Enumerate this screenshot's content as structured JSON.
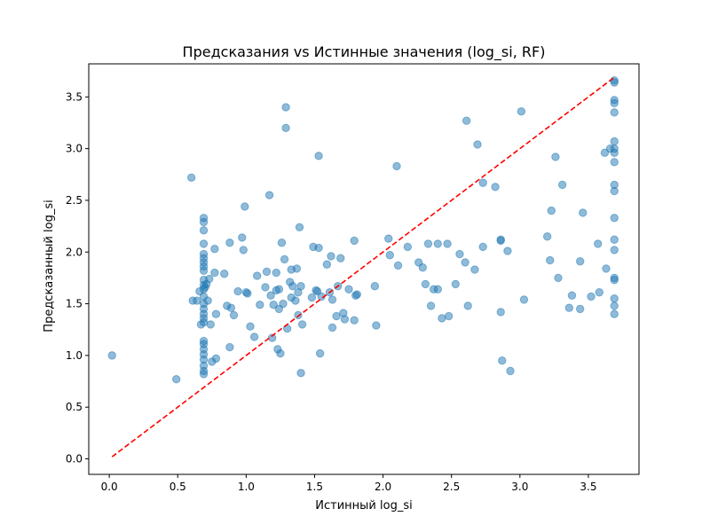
{
  "chart_data": {
    "type": "scatter",
    "title": "Предсказания vs Истинные значения (log_si, RF)",
    "xlabel": "Истинный log_si",
    "ylabel": "Предсказанный log_si",
    "xlim": [
      -0.15,
      3.87
    ],
    "ylim": [
      -0.15,
      3.82
    ],
    "xticks": [
      0.0,
      0.5,
      1.0,
      1.5,
      2.0,
      2.5,
      3.0,
      3.5
    ],
    "xtick_labels": [
      "0.0",
      "0.5",
      "1.0",
      "1.5",
      "2.0",
      "2.5",
      "3.0",
      "3.5"
    ],
    "yticks": [
      0.0,
      0.5,
      1.0,
      1.5,
      2.0,
      2.5,
      3.0,
      3.5
    ],
    "ytick_labels": [
      "0.0",
      "0.5",
      "1.0",
      "1.5",
      "2.0",
      "2.5",
      "3.0",
      "3.5"
    ],
    "grid": false,
    "point_color": "#1f77b4",
    "point_alpha": 0.5,
    "reference_line": {
      "from": [
        0.02,
        0.02
      ],
      "to": [
        3.69,
        3.69
      ],
      "color": "#ff0000",
      "style": "dashed"
    },
    "points": [
      [
        0.02,
        1.0
      ],
      [
        0.49,
        0.77
      ],
      [
        0.6,
        2.72
      ],
      [
        0.61,
        1.53
      ],
      [
        0.64,
        1.53
      ],
      [
        0.66,
        1.62
      ],
      [
        0.67,
        1.3
      ],
      [
        0.69,
        2.33
      ],
      [
        0.69,
        2.29
      ],
      [
        0.69,
        2.21
      ],
      [
        0.69,
        2.08
      ],
      [
        0.69,
        1.98
      ],
      [
        0.69,
        1.94
      ],
      [
        0.69,
        1.9
      ],
      [
        0.69,
        1.86
      ],
      [
        0.69,
        1.82
      ],
      [
        0.69,
        1.73
      ],
      [
        0.69,
        1.68
      ],
      [
        0.69,
        1.64
      ],
      [
        0.69,
        1.57
      ],
      [
        0.69,
        1.5
      ],
      [
        0.69,
        1.45
      ],
      [
        0.69,
        1.4
      ],
      [
        0.69,
        1.36
      ],
      [
        0.69,
        1.32
      ],
      [
        0.69,
        1.14
      ],
      [
        0.69,
        1.11
      ],
      [
        0.69,
        1.06
      ],
      [
        0.69,
        1.01
      ],
      [
        0.69,
        0.96
      ],
      [
        0.69,
        0.9
      ],
      [
        0.69,
        0.85
      ],
      [
        0.69,
        0.82
      ],
      [
        0.7,
        1.66
      ],
      [
        0.71,
        1.69
      ],
      [
        0.72,
        1.53
      ],
      [
        0.73,
        1.74
      ],
      [
        0.74,
        1.3
      ],
      [
        0.75,
        0.94
      ],
      [
        0.77,
        2.03
      ],
      [
        0.77,
        1.8
      ],
      [
        0.78,
        0.97
      ],
      [
        0.78,
        1.4
      ],
      [
        0.84,
        1.79
      ],
      [
        0.86,
        1.48
      ],
      [
        0.88,
        2.09
      ],
      [
        0.88,
        1.08
      ],
      [
        0.89,
        1.46
      ],
      [
        0.91,
        1.39
      ],
      [
        0.94,
        1.62
      ],
      [
        0.97,
        2.14
      ],
      [
        0.98,
        2.02
      ],
      [
        0.99,
        2.44
      ],
      [
        1.0,
        1.61
      ],
      [
        1.01,
        1.6
      ],
      [
        1.03,
        1.28
      ],
      [
        1.06,
        1.18
      ],
      [
        1.08,
        1.77
      ],
      [
        1.1,
        1.49
      ],
      [
        1.14,
        1.66
      ],
      [
        1.15,
        1.81
      ],
      [
        1.17,
        2.55
      ],
      [
        1.18,
        1.58
      ],
      [
        1.19,
        1.17
      ],
      [
        1.2,
        1.49
      ],
      [
        1.22,
        1.63
      ],
      [
        1.22,
        1.8
      ],
      [
        1.23,
        1.06
      ],
      [
        1.24,
        1.45
      ],
      [
        1.24,
        1.64
      ],
      [
        1.25,
        1.02
      ],
      [
        1.26,
        2.09
      ],
      [
        1.27,
        1.5
      ],
      [
        1.28,
        1.93
      ],
      [
        1.29,
        3.4
      ],
      [
        1.29,
        3.2
      ],
      [
        1.3,
        1.26
      ],
      [
        1.32,
        1.71
      ],
      [
        1.33,
        1.56
      ],
      [
        1.33,
        1.83
      ],
      [
        1.34,
        1.67
      ],
      [
        1.36,
        1.53
      ],
      [
        1.37,
        1.84
      ],
      [
        1.38,
        1.39
      ],
      [
        1.38,
        1.61
      ],
      [
        1.39,
        2.24
      ],
      [
        1.4,
        1.67
      ],
      [
        1.4,
        0.83
      ],
      [
        1.41,
        1.3
      ],
      [
        1.48,
        1.56
      ],
      [
        1.49,
        2.05
      ],
      [
        1.51,
        1.63
      ],
      [
        1.52,
        1.62
      ],
      [
        1.53,
        2.93
      ],
      [
        1.53,
        2.04
      ],
      [
        1.54,
        1.02
      ],
      [
        1.55,
        1.57
      ],
      [
        1.59,
        1.88
      ],
      [
        1.61,
        1.61
      ],
      [
        1.62,
        1.96
      ],
      [
        1.63,
        1.27
      ],
      [
        1.63,
        1.54
      ],
      [
        1.66,
        1.38
      ],
      [
        1.67,
        1.67
      ],
      [
        1.69,
        1.94
      ],
      [
        1.71,
        1.41
      ],
      [
        1.72,
        1.35
      ],
      [
        1.75,
        1.64
      ],
      [
        1.79,
        2.11
      ],
      [
        1.79,
        1.34
      ],
      [
        1.8,
        1.58
      ],
      [
        1.81,
        1.59
      ],
      [
        1.94,
        1.67
      ],
      [
        1.95,
        1.29
      ],
      [
        2.04,
        2.13
      ],
      [
        2.05,
        1.97
      ],
      [
        2.1,
        2.83
      ],
      [
        2.11,
        1.87
      ],
      [
        2.18,
        2.05
      ],
      [
        2.26,
        1.9
      ],
      [
        2.29,
        1.85
      ],
      [
        2.31,
        1.69
      ],
      [
        2.33,
        2.08
      ],
      [
        2.35,
        1.48
      ],
      [
        2.37,
        1.64
      ],
      [
        2.4,
        1.64
      ],
      [
        2.4,
        2.08
      ],
      [
        2.43,
        1.36
      ],
      [
        2.47,
        2.08
      ],
      [
        2.48,
        1.38
      ],
      [
        2.53,
        1.69
      ],
      [
        2.56,
        1.98
      ],
      [
        2.6,
        1.9
      ],
      [
        2.61,
        3.27
      ],
      [
        2.62,
        1.48
      ],
      [
        2.67,
        1.83
      ],
      [
        2.69,
        3.04
      ],
      [
        2.73,
        2.67
      ],
      [
        2.73,
        2.05
      ],
      [
        2.82,
        2.63
      ],
      [
        2.86,
        2.12
      ],
      [
        2.86,
        2.11
      ],
      [
        2.86,
        1.42
      ],
      [
        2.87,
        0.95
      ],
      [
        2.91,
        2.01
      ],
      [
        2.93,
        0.85
      ],
      [
        3.01,
        3.36
      ],
      [
        3.03,
        1.54
      ],
      [
        3.2,
        2.15
      ],
      [
        3.22,
        1.92
      ],
      [
        3.23,
        2.4
      ],
      [
        3.26,
        2.92
      ],
      [
        3.28,
        1.75
      ],
      [
        3.31,
        2.65
      ],
      [
        3.36,
        1.46
      ],
      [
        3.38,
        1.58
      ],
      [
        3.44,
        1.91
      ],
      [
        3.44,
        1.45
      ],
      [
        3.46,
        2.38
      ],
      [
        3.52,
        1.57
      ],
      [
        3.57,
        2.08
      ],
      [
        3.58,
        1.61
      ],
      [
        3.62,
        2.96
      ],
      [
        3.63,
        1.84
      ],
      [
        3.66,
        3.0
      ],
      [
        3.69,
        3.66
      ],
      [
        3.69,
        3.64
      ],
      [
        3.69,
        3.47
      ],
      [
        3.69,
        3.44
      ],
      [
        3.69,
        3.35
      ],
      [
        3.69,
        3.07
      ],
      [
        3.69,
        3.0
      ],
      [
        3.69,
        2.96
      ],
      [
        3.69,
        2.87
      ],
      [
        3.69,
        2.65
      ],
      [
        3.69,
        2.59
      ],
      [
        3.69,
        2.33
      ],
      [
        3.69,
        2.12
      ],
      [
        3.69,
        2.02
      ],
      [
        3.69,
        1.75
      ],
      [
        3.69,
        1.73
      ],
      [
        3.69,
        1.55
      ],
      [
        3.69,
        1.48
      ],
      [
        3.69,
        1.4
      ]
    ]
  }
}
